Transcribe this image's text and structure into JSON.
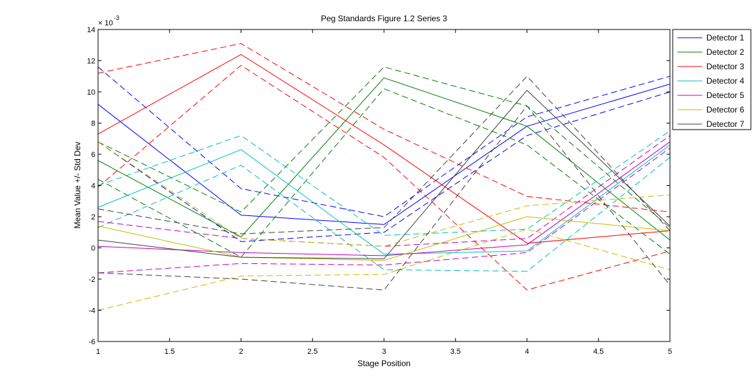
{
  "chart_data": {
    "type": "line",
    "title": "Peg Standards Figure 1.2 Series 3",
    "xlabel": "Stage Position",
    "ylabel": "Mean Value +/- Std Dev",
    "y_exponent_label": "× 10",
    "y_exponent_power": "-3",
    "xlim": [
      1,
      5
    ],
    "ylim": [
      -6,
      14
    ],
    "x_ticks": [
      "1",
      "1.5",
      "2",
      "2.5",
      "3",
      "3.5",
      "4",
      "4.5",
      "5"
    ],
    "y_ticks": [
      "-6",
      "-4",
      "-2",
      "0",
      "2",
      "4",
      "6",
      "8",
      "10",
      "12",
      "14"
    ],
    "x": [
      1,
      2,
      3,
      4,
      5
    ],
    "grid": false,
    "legend_position": "top-right",
    "series": [
      {
        "name": "Detector 1",
        "color": "#0000ff",
        "mean": [
          9.2,
          2.1,
          1.5,
          7.8,
          10.5
        ],
        "upper": [
          11.6,
          3.8,
          2.0,
          8.4,
          11.0
        ],
        "lower": [
          6.8,
          0.4,
          1.0,
          7.2,
          10.0
        ]
      },
      {
        "name": "Detector 2",
        "color": "#008000",
        "mean": [
          5.6,
          0.7,
          10.9,
          7.8,
          0.5
        ],
        "upper": [
          6.8,
          2.3,
          11.6,
          9.1,
          1.3
        ],
        "lower": [
          4.4,
          -0.6,
          10.2,
          6.6,
          -0.4
        ]
      },
      {
        "name": "Detector 3",
        "color": "#ff0000",
        "mean": [
          7.3,
          12.4,
          6.6,
          0.3,
          1.1
        ],
        "upper": [
          11.2,
          13.1,
          7.6,
          3.3,
          2.3
        ],
        "lower": [
          3.9,
          11.7,
          5.8,
          -2.7,
          -0.2
        ]
      },
      {
        "name": "Detector 4",
        "color": "#00bfbf",
        "mean": [
          2.6,
          6.3,
          -0.4,
          -0.2,
          6.6
        ],
        "upper": [
          4.0,
          7.2,
          0.8,
          1.2,
          7.5
        ],
        "lower": [
          1.3,
          5.3,
          -1.4,
          -1.5,
          5.8
        ]
      },
      {
        "name": "Detector 5",
        "color": "#bf00bf",
        "mean": [
          0.1,
          -0.3,
          -0.5,
          0.2,
          6.8
        ],
        "upper": [
          1.7,
          0.6,
          0.1,
          0.6,
          7.2
        ],
        "lower": [
          -1.6,
          -1.0,
          -1.1,
          -0.3,
          6.4
        ]
      },
      {
        "name": "Detector 6",
        "color": "#bfbf00",
        "mean": [
          1.4,
          -0.6,
          -0.8,
          2.0,
          1.1
        ],
        "upper": [
          6.8,
          0.6,
          0.1,
          2.7,
          3.4
        ],
        "lower": [
          -4.0,
          -1.8,
          -1.7,
          1.2,
          -1.4
        ]
      },
      {
        "name": "Detector 7",
        "color": "#404040",
        "mean": [
          0.5,
          -0.6,
          -0.7,
          10.1,
          1.4
        ],
        "upper": [
          2.5,
          0.9,
          1.3,
          11.0,
          1.1
        ],
        "lower": [
          -1.6,
          -2.0,
          -2.7,
          9.1,
          -2.4
        ]
      }
    ]
  }
}
